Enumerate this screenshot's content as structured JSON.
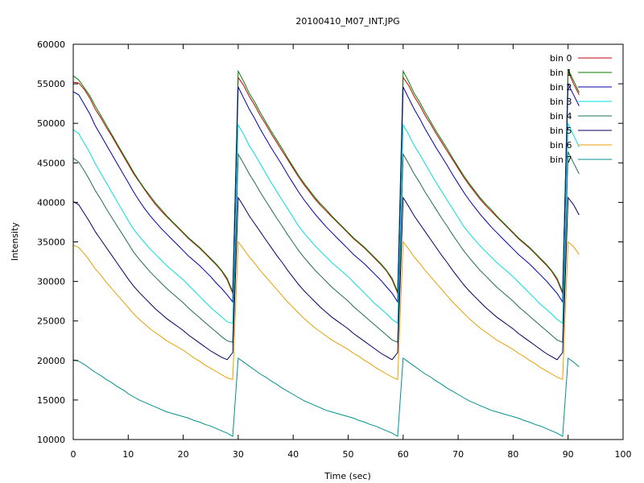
{
  "chart_data": {
    "type": "line",
    "title": "20100410_M07_INT.JPG",
    "xlabel": "Time (sec)",
    "ylabel": "Intensity",
    "xlim": [
      0,
      100
    ],
    "ylim": [
      10000,
      60000
    ],
    "xticks": [
      0,
      10,
      20,
      30,
      40,
      50,
      60,
      70,
      80,
      90,
      100
    ],
    "yticks": [
      10000,
      15000,
      20000,
      25000,
      30000,
      35000,
      40000,
      45000,
      50000,
      55000,
      60000
    ],
    "grid": false,
    "legend_position": "top-right",
    "x": [
      0,
      1,
      2,
      3,
      4,
      5,
      6,
      7,
      8,
      9,
      10,
      11,
      12,
      13,
      14,
      15,
      16,
      17,
      18,
      19,
      20,
      21,
      22,
      23,
      24,
      25,
      26,
      27,
      28,
      29,
      30,
      31,
      32,
      33,
      34,
      35,
      36,
      37,
      38,
      39,
      40,
      41,
      42,
      43,
      44,
      45,
      46,
      47,
      48,
      49,
      50,
      51,
      52,
      53,
      54,
      55,
      56,
      57,
      58,
      59,
      60,
      61,
      62,
      63,
      64,
      65,
      66,
      67,
      68,
      69,
      70,
      71,
      72,
      73,
      74,
      75,
      76,
      77,
      78,
      79,
      80,
      81,
      82,
      83,
      84,
      85,
      86,
      87,
      88,
      89,
      90,
      91,
      92
    ],
    "series": [
      {
        "name": "bin 0",
        "color": "#cc0000",
        "values": [
          55200,
          55100,
          54300,
          53200,
          51800,
          50700,
          49500,
          48400,
          47200,
          46000,
          44800,
          43600,
          42600,
          41600,
          40600,
          39700,
          38900,
          38200,
          37500,
          36800,
          36100,
          35400,
          34800,
          34200,
          33500,
          32800,
          32100,
          31300,
          30200,
          28500,
          55800,
          54800,
          53400,
          52300,
          51000,
          49900,
          48700,
          47600,
          46500,
          45400,
          44300,
          43200,
          42200,
          41300,
          40400,
          39600,
          38900,
          38200,
          37500,
          36800,
          36100,
          35400,
          34800,
          34200,
          33500,
          32800,
          32100,
          31300,
          30200,
          28500,
          55800,
          54800,
          53400,
          52300,
          51000,
          49900,
          48700,
          47600,
          46500,
          45400,
          44300,
          43200,
          42200,
          41300,
          40400,
          39600,
          38900,
          38200,
          37500,
          36800,
          36100,
          35400,
          34800,
          34200,
          33500,
          32800,
          32100,
          31300,
          30200,
          28500,
          56600,
          55000,
          53600
        ]
      },
      {
        "name": "bin 1",
        "color": "#007f00",
        "values": [
          56000,
          55500,
          54500,
          53500,
          52200,
          51000,
          49800,
          48600,
          47400,
          46200,
          45000,
          43800,
          42700,
          41700,
          40800,
          39900,
          39100,
          38300,
          37600,
          36900,
          36200,
          35500,
          34900,
          34300,
          33600,
          32900,
          32200,
          31400,
          30400,
          28700,
          56600,
          55300,
          53800,
          52700,
          51400,
          50200,
          49000,
          47900,
          46800,
          45600,
          44500,
          43400,
          42400,
          41500,
          40600,
          39800,
          39100,
          38300,
          37600,
          36900,
          36200,
          35500,
          34900,
          34300,
          33600,
          32900,
          32200,
          31400,
          30400,
          28700,
          56600,
          55300,
          53800,
          52700,
          51400,
          50200,
          49000,
          47900,
          46800,
          45600,
          44500,
          43400,
          42400,
          41500,
          40600,
          39800,
          39100,
          38300,
          37600,
          36900,
          36200,
          35500,
          34900,
          34300,
          33600,
          32900,
          32200,
          31400,
          30400,
          28700,
          56800,
          55400,
          53900
        ]
      },
      {
        "name": "bin 2",
        "color": "#0000aa",
        "values": [
          54000,
          53600,
          52400,
          51200,
          49700,
          48500,
          47300,
          46100,
          44900,
          43700,
          42500,
          41300,
          40200,
          39200,
          38300,
          37500,
          36700,
          36000,
          35300,
          34600,
          33900,
          33200,
          32600,
          32000,
          31300,
          30600,
          29800,
          29100,
          28300,
          27400,
          54600,
          53200,
          51800,
          50600,
          49300,
          48100,
          46900,
          45800,
          44700,
          43500,
          42400,
          41300,
          40300,
          39400,
          38500,
          37700,
          36900,
          36200,
          35500,
          34800,
          34100,
          33400,
          32800,
          32200,
          31500,
          30800,
          30100,
          29300,
          28500,
          27400,
          54600,
          53200,
          51800,
          50600,
          49300,
          48100,
          46900,
          45800,
          44700,
          43500,
          42400,
          41300,
          40300,
          39400,
          38500,
          37700,
          36900,
          36200,
          35500,
          34800,
          34100,
          33400,
          32800,
          32200,
          31500,
          30800,
          30100,
          29300,
          28500,
          27400,
          55000,
          53600,
          52200
        ]
      },
      {
        "name": "bin 3",
        "color": "#00e0e0",
        "values": [
          49200,
          48700,
          47500,
          46300,
          44900,
          43700,
          42500,
          41300,
          40100,
          38900,
          37700,
          36600,
          35700,
          34900,
          34100,
          33400,
          32700,
          32000,
          31400,
          30800,
          30200,
          29500,
          28800,
          28100,
          27400,
          26700,
          26100,
          25500,
          24900,
          24700,
          49800,
          48600,
          47200,
          46100,
          44900,
          43700,
          42500,
          41400,
          40300,
          39200,
          38100,
          37000,
          36100,
          35300,
          34500,
          33800,
          33100,
          32400,
          31800,
          31200,
          30600,
          29900,
          29200,
          28500,
          27800,
          27100,
          26500,
          25900,
          25200,
          24700,
          49800,
          48600,
          47200,
          46100,
          44900,
          43700,
          42500,
          41400,
          40300,
          39200,
          38100,
          37000,
          36100,
          35300,
          34500,
          33800,
          33100,
          32400,
          31800,
          31200,
          30600,
          29900,
          29200,
          28500,
          27800,
          27100,
          26500,
          25900,
          25200,
          24700,
          50000,
          48500,
          47000
        ]
      },
      {
        "name": "bin 4",
        "color": "#1f6f4f",
        "values": [
          45600,
          45100,
          44000,
          42800,
          41500,
          40400,
          39200,
          38100,
          37000,
          35900,
          34800,
          33700,
          32800,
          32000,
          31200,
          30500,
          29800,
          29100,
          28500,
          27900,
          27300,
          26600,
          26000,
          25400,
          24800,
          24200,
          23600,
          23000,
          22500,
          22300,
          46100,
          44900,
          43600,
          42500,
          41300,
          40200,
          39100,
          38000,
          37000,
          35900,
          34900,
          33900,
          33000,
          32200,
          31400,
          30700,
          30000,
          29300,
          28700,
          28100,
          27500,
          26800,
          26200,
          25600,
          25000,
          24400,
          23800,
          23200,
          22600,
          22300,
          46100,
          44900,
          43600,
          42500,
          41300,
          40200,
          39100,
          38000,
          37000,
          35900,
          34900,
          33900,
          33000,
          32200,
          31400,
          30700,
          30000,
          29300,
          28700,
          28100,
          27500,
          26800,
          26200,
          25600,
          25000,
          24400,
          23800,
          23200,
          22600,
          22300,
          46400,
          45000,
          43600
        ]
      },
      {
        "name": "bin 5",
        "color": "#000066",
        "values": [
          40100,
          39700,
          38600,
          37500,
          36300,
          35300,
          34300,
          33300,
          32300,
          31300,
          30300,
          29400,
          28600,
          27900,
          27200,
          26500,
          25900,
          25300,
          24800,
          24300,
          23800,
          23200,
          22700,
          22200,
          21700,
          21200,
          20800,
          20400,
          20100,
          21000,
          40600,
          39500,
          38300,
          37300,
          36300,
          35300,
          34300,
          33300,
          32400,
          31400,
          30500,
          29600,
          28800,
          28100,
          27400,
          26700,
          26100,
          25500,
          25000,
          24500,
          24000,
          23400,
          22900,
          22400,
          21900,
          21400,
          20900,
          20500,
          20100,
          21000,
          40600,
          39500,
          38300,
          37300,
          36300,
          35300,
          34300,
          33300,
          32400,
          31400,
          30500,
          29600,
          28800,
          28100,
          27400,
          26700,
          26100,
          25500,
          25000,
          24500,
          24000,
          23400,
          22900,
          22400,
          21900,
          21400,
          20900,
          20500,
          20100,
          21000,
          40600,
          39700,
          38400
        ]
      },
      {
        "name": "bin 6",
        "color": "#e8a000",
        "values": [
          34600,
          34300,
          33500,
          32600,
          31600,
          30800,
          29900,
          29100,
          28300,
          27500,
          26700,
          25900,
          25200,
          24600,
          24000,
          23500,
          23000,
          22500,
          22100,
          21700,
          21300,
          20800,
          20300,
          19900,
          19400,
          19000,
          18600,
          18200,
          17800,
          17600,
          35000,
          34100,
          33100,
          32300,
          31400,
          30600,
          29800,
          29000,
          28200,
          27400,
          26700,
          26000,
          25300,
          24700,
          24100,
          23600,
          23100,
          22600,
          22200,
          21800,
          21400,
          20900,
          20500,
          20000,
          19600,
          19100,
          18700,
          18300,
          17900,
          17600,
          35000,
          34100,
          33100,
          32300,
          31400,
          30600,
          29800,
          29000,
          28200,
          27400,
          26700,
          26000,
          25300,
          24700,
          24100,
          23600,
          23100,
          22600,
          22200,
          21800,
          21400,
          20900,
          20500,
          20000,
          19600,
          19100,
          18700,
          18300,
          17900,
          17600,
          35000,
          34400,
          33400
        ]
      },
      {
        "name": "bin 7",
        "color": "#009090",
        "values": [
          20100,
          19900,
          19500,
          19000,
          18500,
          18100,
          17600,
          17200,
          16700,
          16300,
          15800,
          15400,
          15000,
          14700,
          14400,
          14100,
          13800,
          13500,
          13300,
          13100,
          12900,
          12700,
          12400,
          12200,
          11900,
          11700,
          11400,
          11100,
          10800,
          10400,
          20300,
          19800,
          19300,
          18800,
          18300,
          17900,
          17400,
          17000,
          16500,
          16100,
          15700,
          15300,
          14900,
          14600,
          14300,
          14000,
          13700,
          13500,
          13300,
          13100,
          12900,
          12700,
          12400,
          12200,
          11900,
          11700,
          11400,
          11100,
          10800,
          10400,
          20300,
          19800,
          19300,
          18800,
          18300,
          17900,
          17400,
          17000,
          16500,
          16100,
          15700,
          15300,
          14900,
          14600,
          14300,
          14000,
          13700,
          13500,
          13300,
          13100,
          12900,
          12700,
          12400,
          12200,
          11900,
          11700,
          11400,
          11100,
          10800,
          10400,
          20300,
          19800,
          19200
        ]
      }
    ]
  }
}
